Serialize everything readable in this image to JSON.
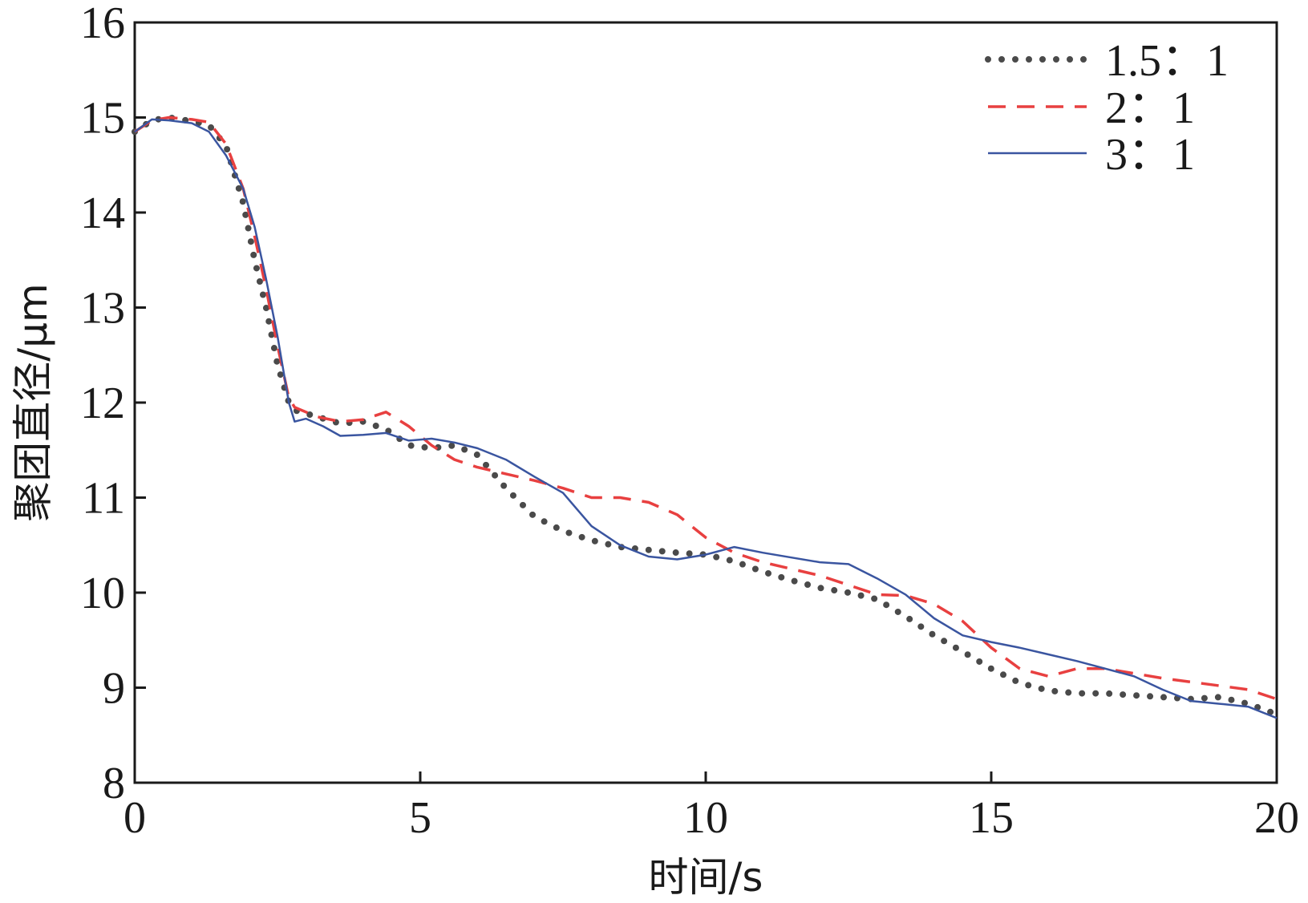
{
  "chart_data": {
    "type": "line",
    "xlabel": "时间/s",
    "ylabel": "聚团直径/μm",
    "xlim": [
      0,
      20
    ],
    "ylim": [
      8,
      16
    ],
    "xticks": [
      "0",
      "5",
      "10",
      "15",
      "20"
    ],
    "yticks": [
      "8",
      "9",
      "10",
      "11",
      "12",
      "13",
      "14",
      "15",
      "16"
    ],
    "grid": false,
    "legend": "top-right",
    "series": [
      {
        "name": "1.5：1",
        "color": "#4a4a4a",
        "style": "dotted",
        "x": [
          0,
          0.3,
          0.6,
          1.0,
          1.3,
          1.6,
          1.9,
          2.1,
          2.3,
          2.5,
          2.7,
          2.8,
          3.2,
          3.6,
          4.0,
          4.4,
          4.8,
          5.2,
          5.6,
          6.0,
          6.5,
          7.0,
          7.5,
          8.0,
          8.5,
          9.0,
          9.5,
          10.0,
          10.5,
          11.0,
          11.5,
          12.0,
          12.5,
          13.0,
          13.5,
          14.0,
          14.5,
          15.0,
          15.5,
          16.0,
          16.5,
          17.0,
          17.5,
          18.0,
          18.5,
          19.0,
          19.5,
          20.0
        ],
        "y": [
          14.85,
          14.97,
          15.0,
          14.96,
          14.92,
          14.7,
          14.1,
          13.5,
          13.0,
          12.4,
          12.0,
          11.92,
          11.85,
          11.78,
          11.8,
          11.72,
          11.55,
          11.52,
          11.55,
          11.45,
          11.1,
          10.8,
          10.65,
          10.55,
          10.48,
          10.45,
          10.42,
          10.4,
          10.33,
          10.22,
          10.13,
          10.05,
          10.0,
          9.93,
          9.75,
          9.55,
          9.38,
          9.2,
          9.05,
          8.97,
          8.94,
          8.94,
          8.92,
          8.9,
          8.88,
          8.9,
          8.83,
          8.72
        ]
      },
      {
        "name": "2：1",
        "color": "#e84040",
        "style": "dashed",
        "x": [
          0,
          0.3,
          0.6,
          1.0,
          1.3,
          1.6,
          1.9,
          2.1,
          2.3,
          2.5,
          2.7,
          2.8,
          3.2,
          3.6,
          4.0,
          4.4,
          4.8,
          5.2,
          5.6,
          6.0,
          6.5,
          7.0,
          7.5,
          8.0,
          8.5,
          9.0,
          9.5,
          10.0,
          10.5,
          11.0,
          11.5,
          12.0,
          12.5,
          13.0,
          13.5,
          14.0,
          14.5,
          15.0,
          15.5,
          16.0,
          16.5,
          17.0,
          17.5,
          18.0,
          18.5,
          19.0,
          19.5,
          20.0
        ],
        "y": [
          14.85,
          14.97,
          15.0,
          14.98,
          14.95,
          14.72,
          14.25,
          13.75,
          13.2,
          12.6,
          12.05,
          11.95,
          11.85,
          11.8,
          11.82,
          11.9,
          11.75,
          11.55,
          11.4,
          11.32,
          11.25,
          11.18,
          11.1,
          11.0,
          11.0,
          10.95,
          10.82,
          10.58,
          10.42,
          10.32,
          10.25,
          10.18,
          10.08,
          9.98,
          9.97,
          9.88,
          9.7,
          9.42,
          9.2,
          9.12,
          9.2,
          9.2,
          9.15,
          9.1,
          9.06,
          9.02,
          8.98,
          8.88
        ]
      },
      {
        "name": "3：1",
        "color": "#3a55a0",
        "style": "solid",
        "x": [
          0,
          0.3,
          0.6,
          1.0,
          1.3,
          1.6,
          1.9,
          2.1,
          2.3,
          2.5,
          2.6,
          2.7,
          2.8,
          3.0,
          3.3,
          3.6,
          4.0,
          4.4,
          4.8,
          5.2,
          5.6,
          6.0,
          6.5,
          7.0,
          7.5,
          8.0,
          8.5,
          9.0,
          9.5,
          10.0,
          10.5,
          11.0,
          11.5,
          12.0,
          12.5,
          13.0,
          13.5,
          14.0,
          14.5,
          15.0,
          15.5,
          16.0,
          16.5,
          17.0,
          17.5,
          18.0,
          18.5,
          19.0,
          19.5,
          20.0
        ],
        "y": [
          14.85,
          14.98,
          14.97,
          14.94,
          14.85,
          14.6,
          14.25,
          13.85,
          13.3,
          12.7,
          12.35,
          12.0,
          11.8,
          11.83,
          11.75,
          11.65,
          11.66,
          11.68,
          11.6,
          11.62,
          11.58,
          11.52,
          11.4,
          11.22,
          11.05,
          10.7,
          10.5,
          10.38,
          10.35,
          10.4,
          10.48,
          10.42,
          10.37,
          10.32,
          10.3,
          10.15,
          9.98,
          9.73,
          9.55,
          9.48,
          9.42,
          9.35,
          9.28,
          9.2,
          9.12,
          8.98,
          8.86,
          8.83,
          8.8,
          8.68
        ]
      }
    ]
  }
}
